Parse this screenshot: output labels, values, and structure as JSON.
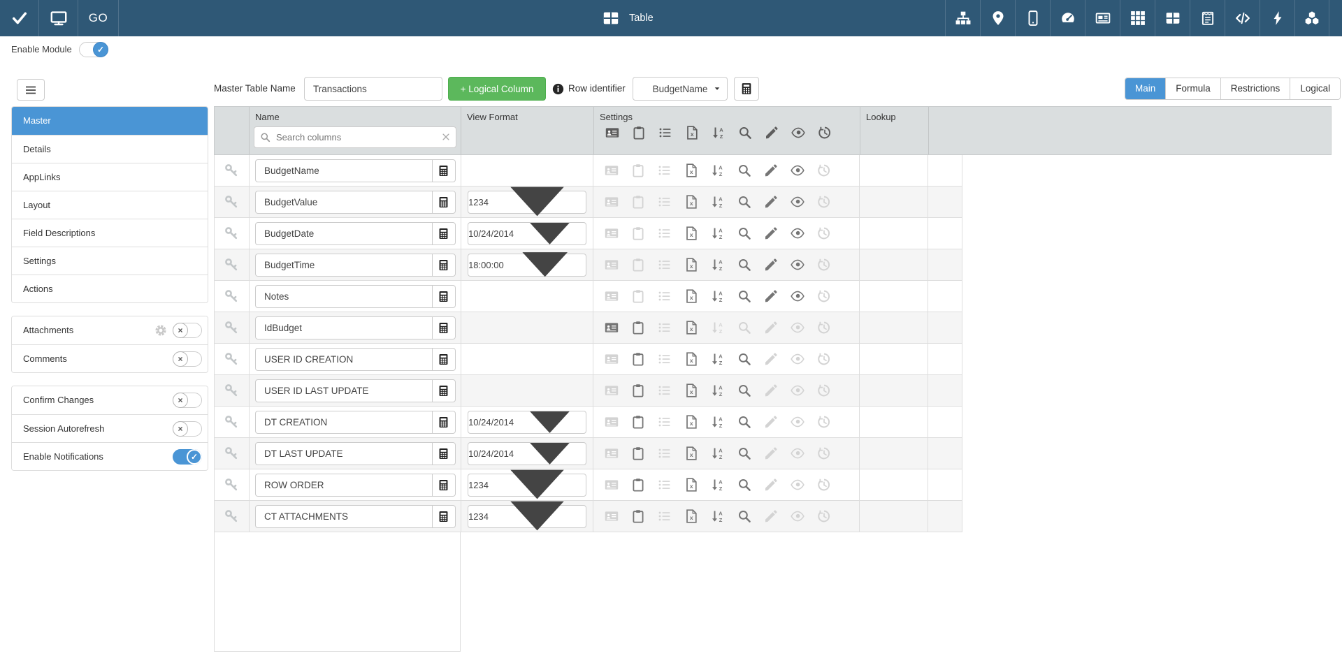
{
  "colors": {
    "topbar_navy": "#2f5876",
    "accent_blue": "#4a95d5",
    "success_green": "#5cb85c",
    "header_gray": "#dadedf",
    "row_alt_gray": "#f5f5f5",
    "icon_enabled": "#757575",
    "icon_disabled": "#d3d3d3"
  },
  "topbar": {
    "go_label": "GO",
    "title_label": "Table",
    "left_icons": [
      "check-icon",
      "monitor-icon"
    ],
    "right_icons": [
      "sitemap-icon",
      "map-pin-icon",
      "mobile-icon",
      "tachometer-icon",
      "newspaper-icon",
      "grid-icon",
      "table-cells-icon",
      "notes-icon",
      "code-icon",
      "bolt-icon",
      "cubes-icon"
    ]
  },
  "module_bar": {
    "label": "Enable Module",
    "enabled": true
  },
  "toolbar": {
    "master_table_name": {
      "label": "Master Table Name",
      "value": "Transactions"
    },
    "logical_column_label": "+ Logical Column",
    "row_identifier": {
      "label": "Row identifier",
      "value": "BudgetName"
    }
  },
  "view_tabs": [
    {
      "label": "Main",
      "active": true
    },
    {
      "label": "Formula",
      "active": false
    },
    {
      "label": "Restrictions",
      "active": false
    },
    {
      "label": "Logical",
      "active": false
    }
  ],
  "sidebar": {
    "nav_items": [
      {
        "label": "Master",
        "active": true
      },
      {
        "label": "Details",
        "active": false
      },
      {
        "label": "AppLinks",
        "active": false
      },
      {
        "label": "Layout",
        "active": false
      },
      {
        "label": "Field Descriptions",
        "active": false
      },
      {
        "label": "Settings",
        "active": false
      },
      {
        "label": "Actions",
        "active": false
      }
    ],
    "feature_items": [
      {
        "label": "Attachments",
        "gear": true,
        "toggle": "off"
      },
      {
        "label": "Comments",
        "gear": false,
        "toggle": "off"
      }
    ],
    "option_items": [
      {
        "label": "Confirm Changes",
        "toggle": "off"
      },
      {
        "label": "Session Autorefresh",
        "toggle": "off"
      },
      {
        "label": "Enable Notifications",
        "toggle": "on"
      }
    ],
    "toggle_glyphs": {
      "on": "✓",
      "off": "×"
    }
  },
  "table": {
    "headers": {
      "name": "Name",
      "view_format": "View Format",
      "settings": "Settings",
      "lookup": "Lookup"
    },
    "search_placeholder": "Search columns",
    "settings_icons": [
      "id-card-icon",
      "clipboard-icon",
      "list-icon",
      "excel-file-icon",
      "sort-alpha-icon",
      "search-icon",
      "pencil-icon",
      "eye-icon",
      "history-icon"
    ],
    "rows": [
      {
        "name": "BudgetName",
        "view_format": "",
        "settings": [
          0,
          0,
          0,
          1,
          1,
          1,
          1,
          1,
          0
        ]
      },
      {
        "name": "BudgetValue",
        "view_format": "1234",
        "settings": [
          0,
          0,
          0,
          1,
          1,
          1,
          1,
          1,
          0
        ]
      },
      {
        "name": "BudgetDate",
        "view_format": "10/24/2014",
        "settings": [
          0,
          0,
          0,
          1,
          1,
          1,
          1,
          1,
          0
        ]
      },
      {
        "name": "BudgetTime",
        "view_format": "18:00:00",
        "settings": [
          0,
          0,
          0,
          1,
          1,
          1,
          1,
          1,
          0
        ]
      },
      {
        "name": "Notes",
        "view_format": "",
        "settings": [
          0,
          0,
          0,
          1,
          1,
          1,
          1,
          1,
          0
        ]
      },
      {
        "name": "IdBudget",
        "view_format": "",
        "settings": [
          1,
          1,
          0,
          1,
          0,
          0,
          0,
          0,
          0
        ]
      },
      {
        "name": "USER ID CREATION",
        "view_format": "",
        "settings": [
          0,
          1,
          0,
          1,
          1,
          1,
          0,
          0,
          0
        ]
      },
      {
        "name": "USER ID LAST UPDATE",
        "view_format": "",
        "settings": [
          0,
          1,
          0,
          1,
          1,
          1,
          0,
          0,
          0
        ]
      },
      {
        "name": "DT CREATION",
        "view_format": "10/24/2014",
        "settings": [
          0,
          1,
          0,
          1,
          1,
          1,
          0,
          0,
          0
        ]
      },
      {
        "name": "DT LAST UPDATE",
        "view_format": "10/24/2014",
        "settings": [
          0,
          1,
          0,
          1,
          1,
          1,
          0,
          0,
          0
        ]
      },
      {
        "name": "ROW ORDER",
        "view_format": "1234",
        "settings": [
          0,
          1,
          0,
          1,
          1,
          1,
          0,
          0,
          0
        ]
      },
      {
        "name": "CT ATTACHMENTS",
        "view_format": "1234",
        "settings": [
          0,
          1,
          0,
          1,
          1,
          1,
          0,
          0,
          0
        ]
      }
    ]
  }
}
